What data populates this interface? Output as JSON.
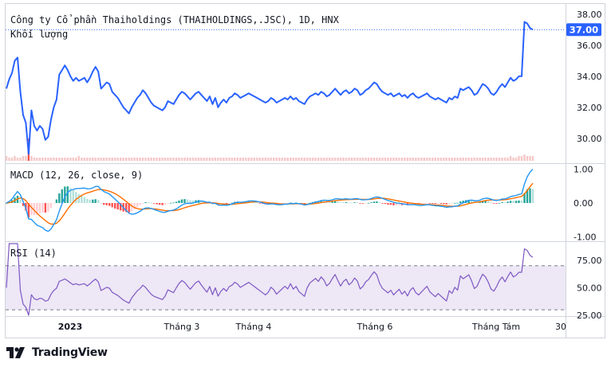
{
  "chart_data": [
    {
      "type": "line",
      "title": "Công ty Cổ phần Thaiholdings (THAIHOLDINGS,.JSC), 1D, HNX",
      "subtitle": "Khối lượng",
      "ylim": [
        28.5,
        38.5
      ],
      "yticks": [
        "30.00",
        "32.00",
        "34.00",
        "36.00",
        "38.00"
      ],
      "last_price_label": "37.00",
      "last_price": 37.0,
      "x_labels": [
        "2023",
        "Tháng 3",
        "Tháng 4",
        "Tháng 6",
        "Tháng Tám",
        "30"
      ],
      "price": [
        33.2,
        33.8,
        34.2,
        35.0,
        35.2,
        33.0,
        31.5,
        31.0,
        29.0,
        31.8,
        30.8,
        30.5,
        30.8,
        30.6,
        29.9,
        30.1,
        31.2,
        32.0,
        32.5,
        34.1,
        34.4,
        34.7,
        34.4,
        34.0,
        33.7,
        33.9,
        33.7,
        33.8,
        33.9,
        33.6,
        33.9,
        34.3,
        34.6,
        34.3,
        33.2,
        33.4,
        33.6,
        33.5,
        33.0,
        32.8,
        32.6,
        32.3,
        32.0,
        31.8,
        31.6,
        32.0,
        32.3,
        32.6,
        32.8,
        33.1,
        32.9,
        32.6,
        32.3,
        32.1,
        32.0,
        31.9,
        31.8,
        32.0,
        32.4,
        32.3,
        32.2,
        32.5,
        32.8,
        33.0,
        32.9,
        32.7,
        32.5,
        32.7,
        32.9,
        33.0,
        32.8,
        32.6,
        32.4,
        32.7,
        32.2,
        32.6,
        32.0,
        32.3,
        32.5,
        32.3,
        32.6,
        32.7,
        32.9,
        32.8,
        32.6,
        32.7,
        32.8,
        32.9,
        32.8,
        32.7,
        32.6,
        32.5,
        32.4,
        32.3,
        32.4,
        32.6,
        32.5,
        32.3,
        32.4,
        32.5,
        32.6,
        32.5,
        32.7,
        32.5,
        32.6,
        32.4,
        32.3,
        32.2,
        32.5,
        32.7,
        32.8,
        32.9,
        32.8,
        33.0,
        32.9,
        32.7,
        32.8,
        33.0,
        33.2,
        33.0,
        32.8,
        33.0,
        33.1,
        32.9,
        33.0,
        33.2,
        33.1,
        32.8,
        32.9,
        33.1,
        33.2,
        33.4,
        33.6,
        33.5,
        33.2,
        33.0,
        32.9,
        32.8,
        32.9,
        32.7,
        32.8,
        32.9,
        32.7,
        32.8,
        32.6,
        32.8,
        32.9,
        32.7,
        32.6,
        32.7,
        32.8,
        32.9,
        32.7,
        32.6,
        32.5,
        32.6,
        32.5,
        32.4,
        32.3,
        32.6,
        32.5,
        32.7,
        32.6,
        33.2,
        33.1,
        33.2,
        33.3,
        33.1,
        32.8,
        32.9,
        33.2,
        33.5,
        33.4,
        33.2,
        32.9,
        32.8,
        33.0,
        33.3,
        33.5,
        33.3,
        33.6,
        33.9,
        33.7,
        33.8,
        34.0,
        34.0,
        37.5,
        37.4,
        37.1,
        37.0
      ],
      "volume": [
        0.3,
        0.2,
        0.2,
        0.3,
        0.2,
        0.2,
        0.3,
        0.3,
        1.4,
        0.3,
        0.2,
        0.2,
        0.2,
        0.2,
        0.2,
        0.2,
        0.2,
        0.2,
        0.2,
        0.2,
        0.2,
        0.2,
        0.2,
        0.2,
        0.2,
        0.2,
        0.3,
        0.2,
        0.2,
        0.2,
        0.2,
        0.2,
        0.2,
        0.2,
        0.2,
        0.2,
        0.2,
        0.2,
        0.2,
        0.2,
        0.2,
        0.2,
        0.2,
        0.2,
        0.2,
        0.2,
        0.2,
        0.2,
        0.2,
        0.2,
        0.2,
        0.2,
        0.2,
        0.2,
        0.2,
        0.2,
        0.2,
        0.2,
        0.2,
        0.2,
        0.2,
        0.2,
        0.2,
        0.2,
        0.2,
        0.2,
        0.2,
        0.2,
        0.2,
        0.2,
        0.2,
        0.2,
        0.2,
        0.2,
        0.2,
        0.2,
        0.2,
        0.2,
        0.2,
        0.2,
        0.2,
        0.2,
        0.2,
        0.2,
        0.2,
        0.2,
        0.2,
        0.2,
        0.2,
        0.2,
        0.2,
        0.2,
        0.2,
        0.2,
        0.2,
        0.2,
        0.2,
        0.2,
        0.2,
        0.2,
        0.2,
        0.2,
        0.2,
        0.2,
        0.2,
        0.2,
        0.2,
        0.2,
        0.2,
        0.2,
        0.2,
        0.2,
        0.2,
        0.2,
        0.2,
        0.2,
        0.2,
        0.2,
        0.2,
        0.2,
        0.2,
        0.2,
        0.2,
        0.2,
        0.2,
        0.2,
        0.2,
        0.2,
        0.2,
        0.2,
        0.2,
        0.2,
        0.2,
        0.2,
        0.2,
        0.2,
        0.2,
        0.2,
        0.2,
        0.2,
        0.2,
        0.2,
        0.2,
        0.2,
        0.2,
        0.2,
        0.2,
        0.2,
        0.2,
        0.2,
        0.2,
        0.2,
        0.2,
        0.2,
        0.2,
        0.2,
        0.2,
        0.2,
        0.2,
        0.2,
        0.2,
        0.2,
        0.2,
        0.2,
        0.2,
        0.2,
        0.2,
        0.2,
        0.2,
        0.2,
        0.2,
        0.2,
        0.2,
        0.2,
        0.2,
        0.2,
        0.2,
        0.2,
        0.2,
        0.2,
        0.2,
        0.3,
        0.2,
        0.2,
        0.3,
        0.3,
        0.4,
        0.3,
        0.3,
        0.3
      ],
      "colors": {
        "price_line": "#2962ff",
        "volume_bar": "#f6c7c7",
        "volume_spike": "#ef5350",
        "last_price_bg": "#2962ff"
      }
    },
    {
      "type": "line",
      "title": "MACD (12, 26, close, 9)",
      "ylim": [
        -1.1,
        1.1
      ],
      "yticks": [
        "-1.00",
        "0.00",
        "1.00"
      ],
      "series": [
        "MACD",
        "Signal",
        "Histogram"
      ],
      "colors": {
        "macd": "#2196f3",
        "signal": "#ff6d00",
        "hist_up_strong": "#26a69a",
        "hist_up_weak": "#b2dfdb",
        "hist_down_strong": "#ff5252",
        "hist_down_weak": "#ffcdd2"
      }
    },
    {
      "type": "line",
      "title": "RSI (14)",
      "ylim": [
        25,
        90
      ],
      "yticks": [
        "25.00",
        "50.00",
        "75.00"
      ],
      "bands": [
        30,
        70
      ],
      "colors": {
        "rsi": "#7e57c2",
        "band_fill": "#ede7f6"
      }
    }
  ],
  "brand": {
    "name": "TradingView"
  }
}
